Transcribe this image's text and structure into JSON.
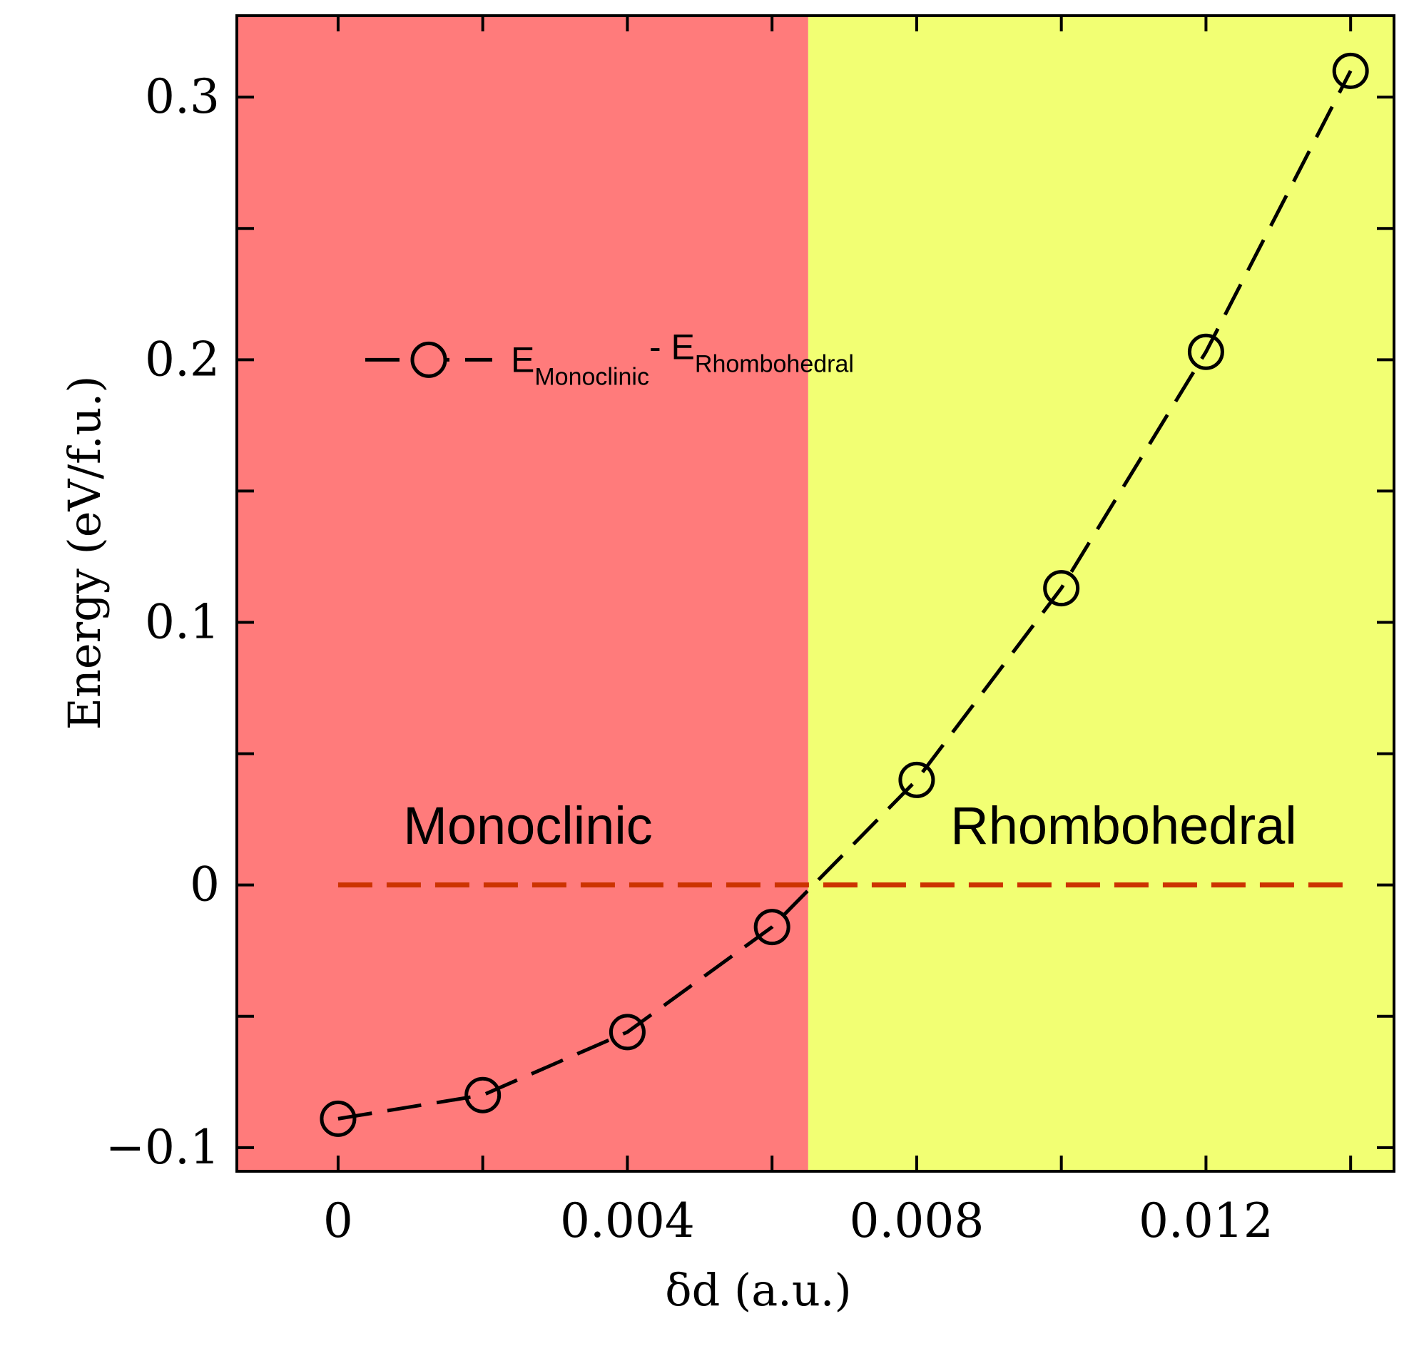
{
  "chart_data": {
    "type": "line",
    "xlabel": "δd (a.u.)",
    "ylabel": "Energy (eV/f.u.)",
    "xlim": [
      -0.0014,
      0.0146
    ],
    "ylim": [
      -0.109,
      0.331
    ],
    "x_ticks": [
      0,
      0.004,
      0.008,
      0.012
    ],
    "x_tick_labels": [
      "0",
      "0.004",
      "0.008",
      "0.012"
    ],
    "x_minor_ticks": [
      0.002,
      0.006,
      0.01,
      0.014
    ],
    "y_ticks": [
      -0.1,
      0,
      0.1,
      0.2,
      0.3
    ],
    "y_tick_labels": [
      "−0.1",
      "0",
      "0.1",
      "0.2",
      "0.3"
    ],
    "y_minor_ticks": [
      -0.05,
      0.05,
      0.15,
      0.25
    ],
    "series": [
      {
        "name": "E_Monoclinic - E_Rhombohedral",
        "legend": {
          "main1": "E",
          "sub1": "Monoclinic",
          "sep": "- E",
          "sub2": "Rhombohedral"
        },
        "x": [
          0,
          0.002,
          0.004,
          0.006,
          0.008,
          0.01,
          0.012,
          0.014
        ],
        "y": [
          -0.089,
          -0.08,
          -0.056,
          -0.016,
          0.04,
          0.113,
          0.203,
          0.31
        ],
        "marker": "open-circle",
        "line": "dashed",
        "color": "#000000"
      }
    ],
    "reference_line": {
      "y": 0,
      "x_range": [
        0,
        0.014
      ],
      "style": "dashed",
      "color": "#cc3300"
    },
    "regions": [
      {
        "label": "Monoclinic",
        "x_range": [
          -0.0014,
          0.0065
        ],
        "color": "#ff7b7b"
      },
      {
        "label": "Rhombohedral",
        "x_range": [
          0.0065,
          0.0146
        ],
        "color": "#f2ff73"
      }
    ],
    "legend_position": "upper-left",
    "grid": false
  }
}
